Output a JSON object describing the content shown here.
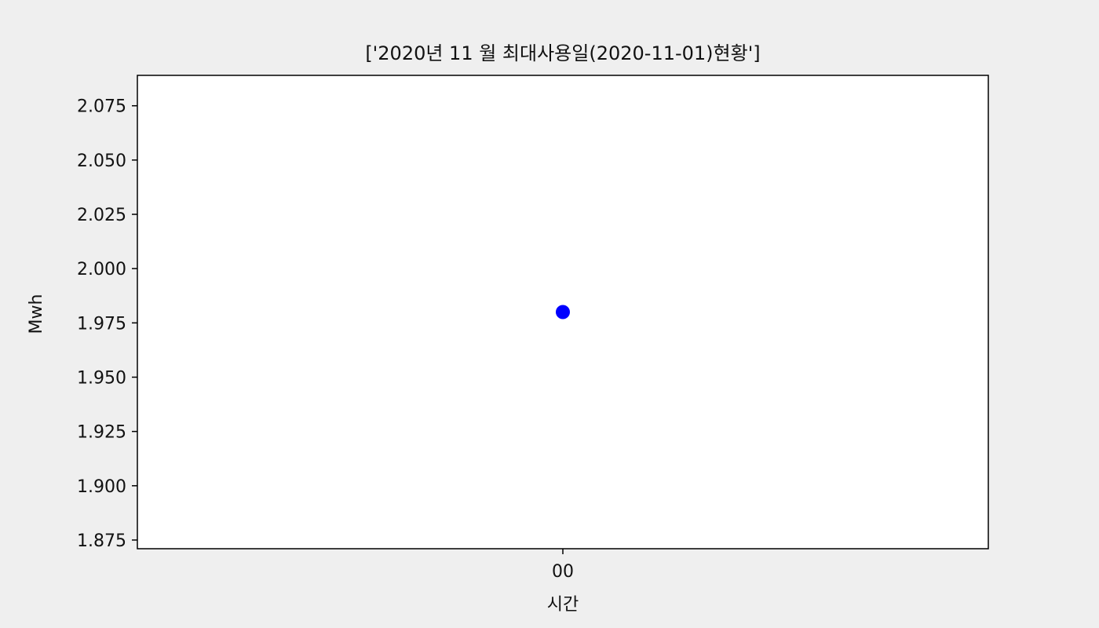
{
  "chart_data": {
    "type": "scatter",
    "title": "['2020년 11 월 최대사용일(2020-11-01)현황']",
    "xlabel": "시간",
    "ylabel": "Mwh",
    "x_categories": [
      "00"
    ],
    "points": [
      {
        "x": "00",
        "y": 1.98
      }
    ],
    "ylim": [
      1.871,
      2.089
    ],
    "yticks": [
      "1.875",
      "1.900",
      "1.925",
      "1.950",
      "1.975",
      "2.000",
      "2.025",
      "2.050",
      "2.075"
    ],
    "grid": false,
    "legend": "none",
    "colors": {
      "marker": "#0000ff",
      "axes_background": "#ffffff",
      "figure_background": "#efefef",
      "axes_border": "#000000"
    }
  }
}
